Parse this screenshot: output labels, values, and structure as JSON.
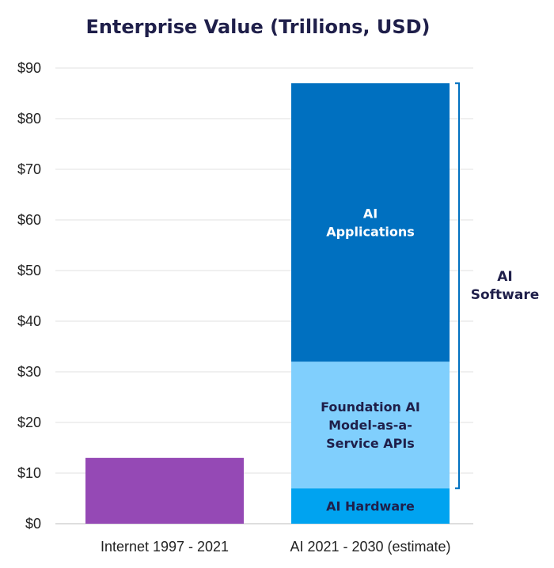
{
  "chart_data": {
    "type": "bar",
    "title": "Enterprise Value (Trillions, USD)",
    "xlabel": "",
    "ylabel": "",
    "ylim": [
      0,
      90
    ],
    "yticks": [
      "$0",
      "$10",
      "$20",
      "$30",
      "$40",
      "$50",
      "$60",
      "$70",
      "$80",
      "$90"
    ],
    "grid": true,
    "categories": [
      "Internet 1997 - 2021",
      "AI 2021 - 2030 (estimate)"
    ],
    "bars": [
      {
        "category": "Internet 1997 - 2021",
        "segments": [
          {
            "label": "",
            "value": 13,
            "color": "#9549b5"
          }
        ]
      },
      {
        "category": "AI 2021 - 2030 (estimate)",
        "segments": [
          {
            "label": "AI Hardware",
            "value": 7,
            "color": "#00a3f0",
            "text_color": "#1f1f4a"
          },
          {
            "label": "Foundation AI Model-as-a- Service APIs",
            "lines": [
              "Foundation AI",
              "Model-as-a-",
              "Service APIs"
            ],
            "value": 25,
            "color": "#80cffd",
            "text_color": "#1f1f4a"
          },
          {
            "label": "AI Applications",
            "lines": [
              "AI",
              "Applications"
            ],
            "value": 55,
            "color": "#0070c0",
            "text_color": "#ffffff"
          }
        ]
      }
    ],
    "bracket": {
      "lines": [
        "AI",
        "Software"
      ],
      "from": 7,
      "to": 87,
      "color": "#0070c0"
    }
  }
}
